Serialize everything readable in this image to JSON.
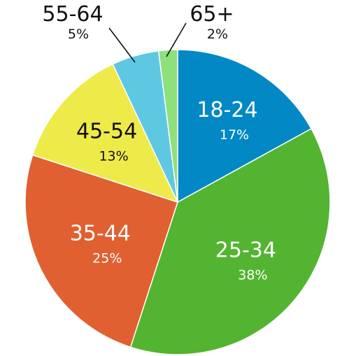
{
  "chart_data": {
    "type": "pie",
    "title": "",
    "slices": [
      {
        "label": "18-24",
        "value": 17,
        "value_label": "17%",
        "color": "#0288c5",
        "text_color": "#ffffff"
      },
      {
        "label": "25-34",
        "value": 38,
        "value_label": "38%",
        "color": "#53b431",
        "text_color": "#ffffff"
      },
      {
        "label": "35-44",
        "value": 25,
        "value_label": "25%",
        "color": "#e06031",
        "text_color": "#ffffff"
      },
      {
        "label": "45-54",
        "value": 13,
        "value_label": "13%",
        "color": "#eeea4a",
        "text_color": "#111111"
      },
      {
        "label": "55-64",
        "value": 5,
        "value_label": "5%",
        "color": "#5ec8e3",
        "text_color": "#111111"
      },
      {
        "label": "65+",
        "value": 2,
        "value_label": "2%",
        "color": "#8ee07c",
        "text_color": "#111111"
      }
    ],
    "start": "12 o'clock",
    "direction": "clockwise",
    "legend": "none"
  }
}
